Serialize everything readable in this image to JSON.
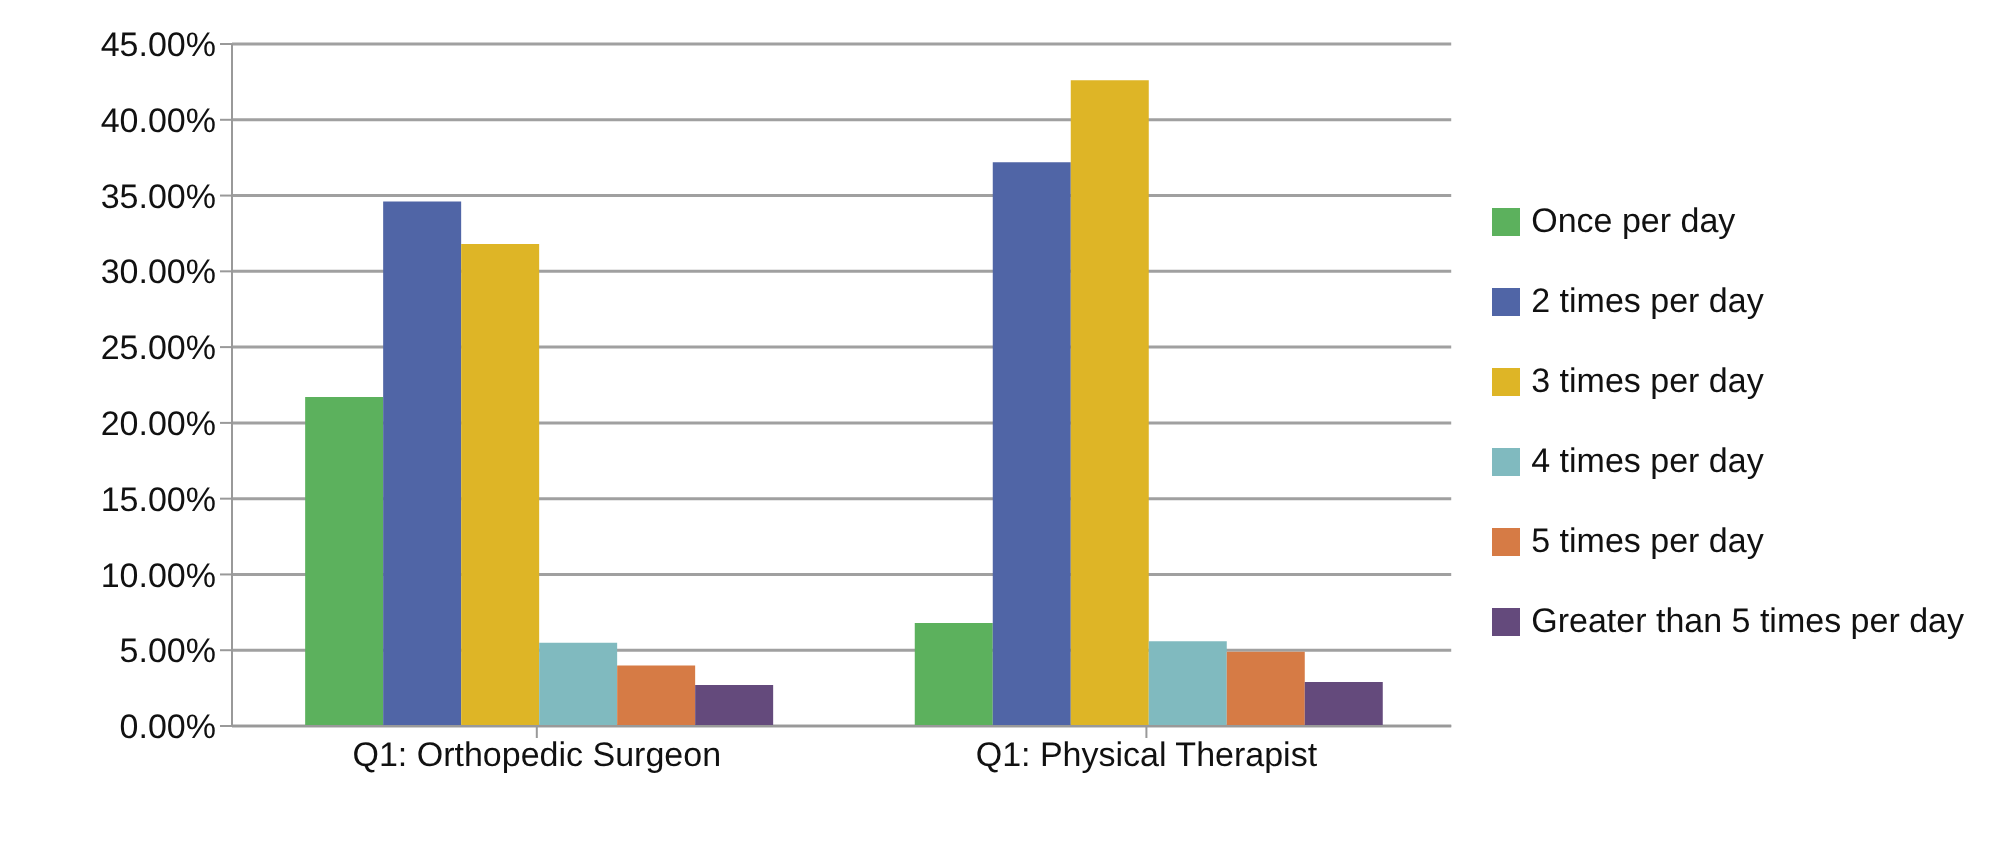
{
  "chart_data": {
    "type": "bar",
    "categories": [
      "Q1: Orthopedic Surgeon",
      "Q1: Physical Therapist"
    ],
    "series": [
      {
        "name": "Once per day",
        "color": "#5cb15d",
        "values": [
          21.7,
          6.8
        ]
      },
      {
        "name": "2 times per day",
        "color": "#5065a6",
        "values": [
          34.6,
          37.2
        ]
      },
      {
        "name": "3 times per day",
        "color": "#deb526",
        "values": [
          31.8,
          42.6
        ]
      },
      {
        "name": "4 times per day",
        "color": "#80babf",
        "values": [
          5.5,
          5.6
        ]
      },
      {
        "name": "5 times per day",
        "color": "#d67b45",
        "values": [
          4.0,
          4.9
        ]
      },
      {
        "name": "Greater than 5 times per day",
        "color": "#644a7c",
        "values": [
          2.7,
          2.9
        ]
      }
    ],
    "ylim": [
      0,
      45
    ],
    "yticks": [
      {
        "value": 0,
        "label": "0.00%"
      },
      {
        "value": 5,
        "label": "5.00%"
      },
      {
        "value": 10,
        "label": "10.00%"
      },
      {
        "value": 15,
        "label": "15.00%"
      },
      {
        "value": 20,
        "label": "20.00%"
      },
      {
        "value": 25,
        "label": "25.00%"
      },
      {
        "value": 30,
        "label": "30.00%"
      },
      {
        "value": 35,
        "label": "35.00%"
      },
      {
        "value": 40,
        "label": "40.00%"
      },
      {
        "value": 45,
        "label": "45.00%"
      }
    ],
    "grid": "y",
    "legend": "right"
  }
}
